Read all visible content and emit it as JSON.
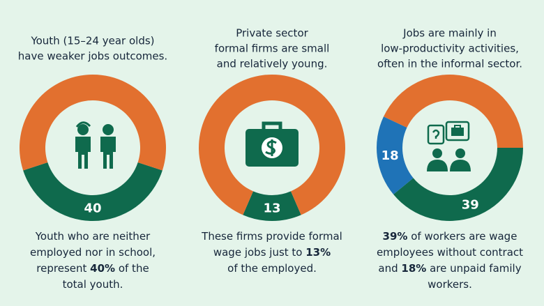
{
  "chart_data": [
    {
      "type": "donut",
      "title": [
        "Youth (15–24 year olds)",
        "have weaker jobs outcomes."
      ],
      "categories": [
        null,
        null
      ],
      "values": [
        40,
        60
      ],
      "value_labels": [
        "40",
        null
      ],
      "colors": [
        "#0f6a4d",
        "#e2702f"
      ],
      "caption": [
        [
          {
            "text": "Youth who are neither"
          }
        ],
        [
          {
            "text": "employed nor in school,"
          }
        ],
        [
          {
            "text": "represent "
          },
          {
            "text": "40%",
            "bold": true
          },
          {
            "text": " of the"
          }
        ],
        [
          {
            "text": "total youth."
          }
        ]
      ]
    },
    {
      "type": "donut",
      "title": [
        "Private sector",
        "formal firms are small",
        "and relatively young."
      ],
      "categories": [
        null,
        null
      ],
      "values": [
        13,
        87
      ],
      "value_labels": [
        "13",
        null
      ],
      "colors": [
        "#0f6a4d",
        "#e2702f"
      ],
      "caption": [
        [
          {
            "text": "These firms provide formal"
          }
        ],
        [
          {
            "text": "wage jobs just to "
          },
          {
            "text": "13%",
            "bold": true
          }
        ],
        [
          {
            "text": "of the employed."
          }
        ]
      ]
    },
    {
      "type": "donut",
      "title": [
        "Jobs are mainly in",
        "low-productivity activities,",
        "often in the informal sector."
      ],
      "categories": [
        null,
        null,
        null
      ],
      "values": [
        39,
        18,
        43
      ],
      "value_labels": [
        "39",
        "18",
        null
      ],
      "colors": [
        "#0f6a4d",
        "#1f73b7",
        "#e2702f"
      ],
      "caption": [
        [
          {
            "text": "39%",
            "bold": true
          },
          {
            "text": " of workers are wage"
          }
        ],
        [
          {
            "text": "employees without contract"
          }
        ],
        [
          {
            "text": "and "
          },
          {
            "text": "18%",
            "bold": true
          },
          {
            "text": " are unpaid family"
          }
        ],
        [
          {
            "text": "workers."
          }
        ]
      ]
    }
  ]
}
